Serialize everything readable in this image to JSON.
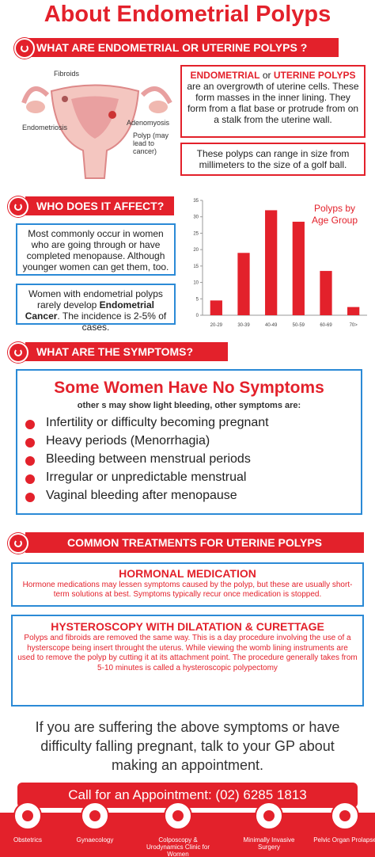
{
  "header": {
    "title": "About Endometrial Polyps"
  },
  "section1": {
    "heading": "WHAT ARE ENDOMETRIAL OR UTERINE POLYPS ?",
    "diagram_labels": [
      "Fibroids",
      "Endometriosis",
      "Adenomyosis",
      "Polyp (may lead to cancer)"
    ],
    "box1": {
      "term1": "ENDOMETRIAL",
      "joiner": "or",
      "term2": "UTERINE POLYPS",
      "text": "are an overgrowth of uterine cells. These form masses in the inner lining. They form from a flat base or protrude from on a stalk from the uterine wall."
    },
    "box2": "These polyps can range in size from millimeters to the size of a golf ball."
  },
  "section2": {
    "heading": "WHO DOES IT AFFECT?",
    "box1": "Most commonly occur in women who are going through or have completed menopause. Although younger women can get them, too.",
    "box2": {
      "before": "Women with endometrial polyps rarely develop",
      "term": "Endometrial Cancer",
      "after": ". The incidence is 2-5% of cases."
    }
  },
  "chart_data": {
    "type": "bar",
    "title": "Polyps by Age Group",
    "categories": [
      "20-29",
      "30-39",
      "40-49",
      "50-59",
      "60-69",
      "70>"
    ],
    "values": [
      4.5,
      19,
      32,
      28.5,
      13.5,
      2.5
    ],
    "color": "#e3212b",
    "ylim": [
      0,
      35
    ],
    "yticks": [
      0,
      5,
      10,
      15,
      20,
      25,
      30,
      35
    ],
    "grid": false
  },
  "section3": {
    "heading": "WHAT ARE THE SYMPTOMS?",
    "headline": "Some Women Have No Symptoms",
    "subline": "other s may show light bleeding, other symptoms are:",
    "items": [
      "Infertility or difficulty becoming pregnant",
      "Heavy periods (Menorrhagia)",
      "Bleeding between menstrual periods",
      "Irregular or unpredictable menstrual",
      "Vaginal bleeding after menopause"
    ]
  },
  "section4": {
    "heading": "COMMON TREATMENTS FOR UTERINE POLYPS",
    "treatments": [
      {
        "title": "HORMONAL MEDICATION",
        "text": "Hormone medications may lessen symptoms caused by the polyp, but these are usually short-term solutions at best. Symptoms typically recur once medication is stopped."
      },
      {
        "title": "HYSTEROSCOPY WITH DILATATION & CURETTAGE",
        "text": "Polyps and fibroids are removed the same way. This is a day procedure involving the use of a hysterscope being insert throught the uterus. While viewing the womb lining instruments are used to remove the polyp by cutting it at its attachment point.  The procedure generally takes from 5-10 minutes is called a hysteroscopic polypectomy"
      }
    ]
  },
  "closing": "If you are suffering the above symptoms or have difficulty falling pregnant, talk to your GP about making an appointment.",
  "cta": "Call for an Appointment: (02) 6285 1813",
  "footer": [
    "Obstetrics",
    "Gynaecology",
    "Colposcopy & Urodynamics Clinic for Women",
    "Minimally Invasive Surgery",
    "Pelvic Organ Prolapse"
  ]
}
